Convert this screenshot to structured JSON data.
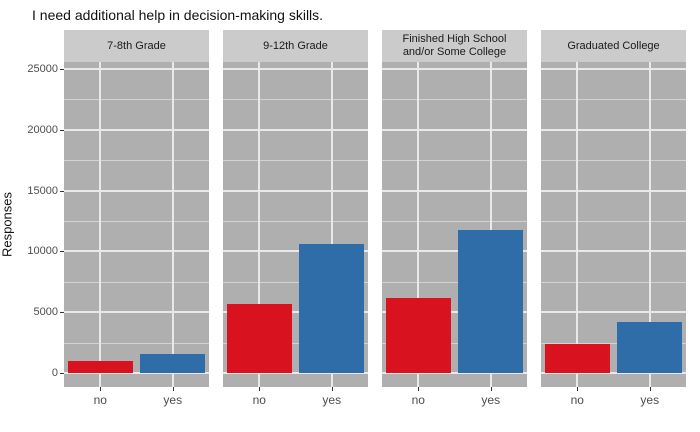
{
  "title": "I need additional help in decision-making skills.",
  "y_axis": {
    "label": "Responses",
    "tick_labels": [
      "0",
      "5000",
      "10000",
      "15000",
      "20000",
      "25000"
    ],
    "tick_values": [
      0,
      5000,
      10000,
      15000,
      20000,
      25000
    ],
    "minor_values": [
      2500,
      7500,
      12500,
      17500,
      22500
    ]
  },
  "x_axis": {
    "categories": [
      "no",
      "yes"
    ]
  },
  "colors": {
    "bar_no": "#d8131f",
    "bar_yes": "#2f6da9",
    "panel_background": "#afafaf",
    "strip_background": "#cbcbcb",
    "grid_major": "#e9e9e9",
    "grid_minor": "#d2d2d2",
    "axis_text": "#4d4d4d"
  },
  "chart_data": {
    "type": "bar",
    "title": "I need additional help in decision-making skills.",
    "xlabel": "",
    "ylabel": "Responses",
    "ylim": [
      0,
      25000
    ],
    "grid": true,
    "legend_position": "none",
    "categories": [
      "no",
      "yes"
    ],
    "facets": [
      {
        "label": "7-8th Grade",
        "values": {
          "no": 1000,
          "yes": 1600
        }
      },
      {
        "label": "9-12th Grade",
        "values": {
          "no": 5700,
          "yes": 10600
        }
      },
      {
        "label": "Finished High School\nand/or Some College",
        "values": {
          "no": 6200,
          "yes": 11800
        }
      },
      {
        "label": "Graduated College",
        "values": {
          "no": 2400,
          "yes": 4200
        }
      }
    ]
  }
}
